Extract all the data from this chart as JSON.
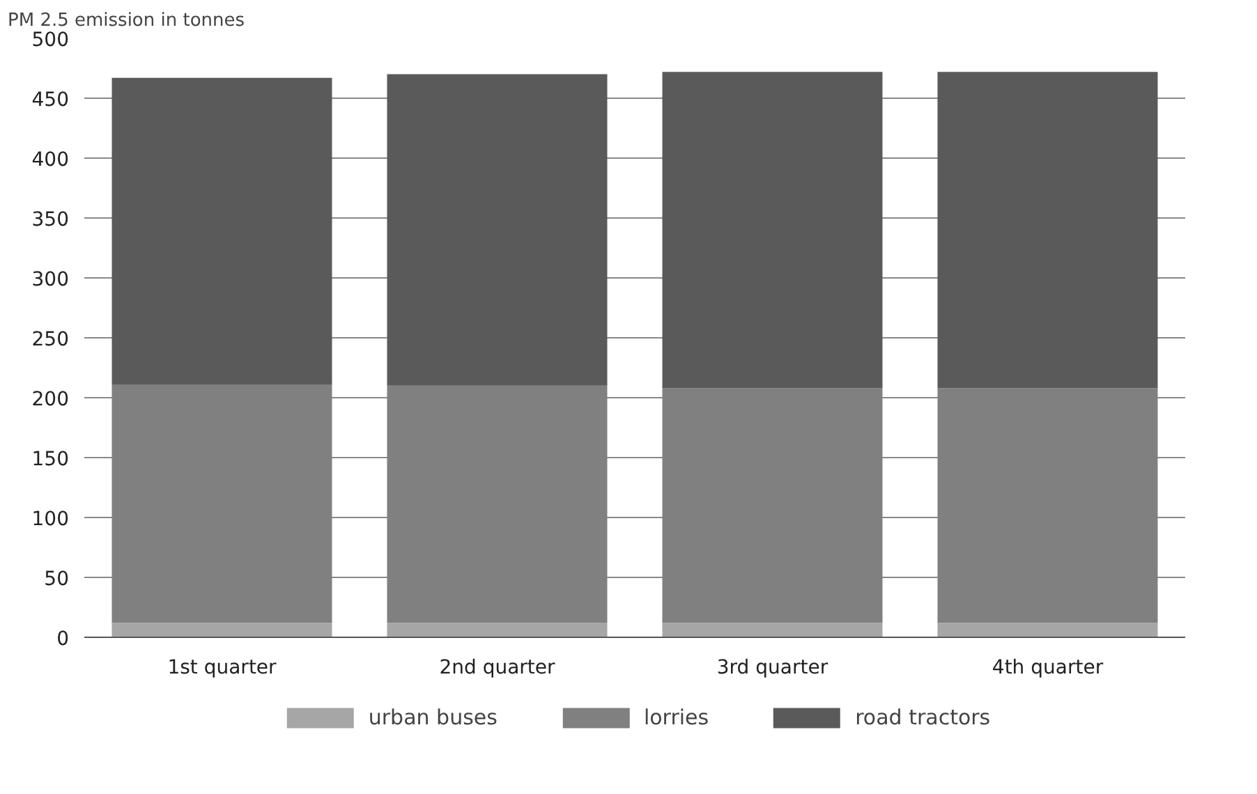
{
  "chart_data": {
    "type": "bar",
    "stacked": true,
    "ylabel": "PM 2.5 emission in tonnes",
    "categories": [
      "1st quarter",
      "2nd quarter",
      "3rd quarter",
      "4th quarter"
    ],
    "series": [
      {
        "name": "urban buses",
        "color": "#a6a6a6",
        "values": [
          12,
          12,
          12,
          12
        ]
      },
      {
        "name": "lorries",
        "color": "#808080",
        "values": [
          199,
          198,
          196,
          196
        ]
      },
      {
        "name": "road tractors",
        "color": "#5a5a5a",
        "values": [
          256,
          260,
          264,
          264
        ]
      }
    ],
    "ylim": [
      0,
      500
    ],
    "yticks": [
      0,
      50,
      100,
      150,
      200,
      250,
      300,
      350,
      400,
      450,
      500
    ],
    "grid": "y",
    "legend": "bottom"
  }
}
